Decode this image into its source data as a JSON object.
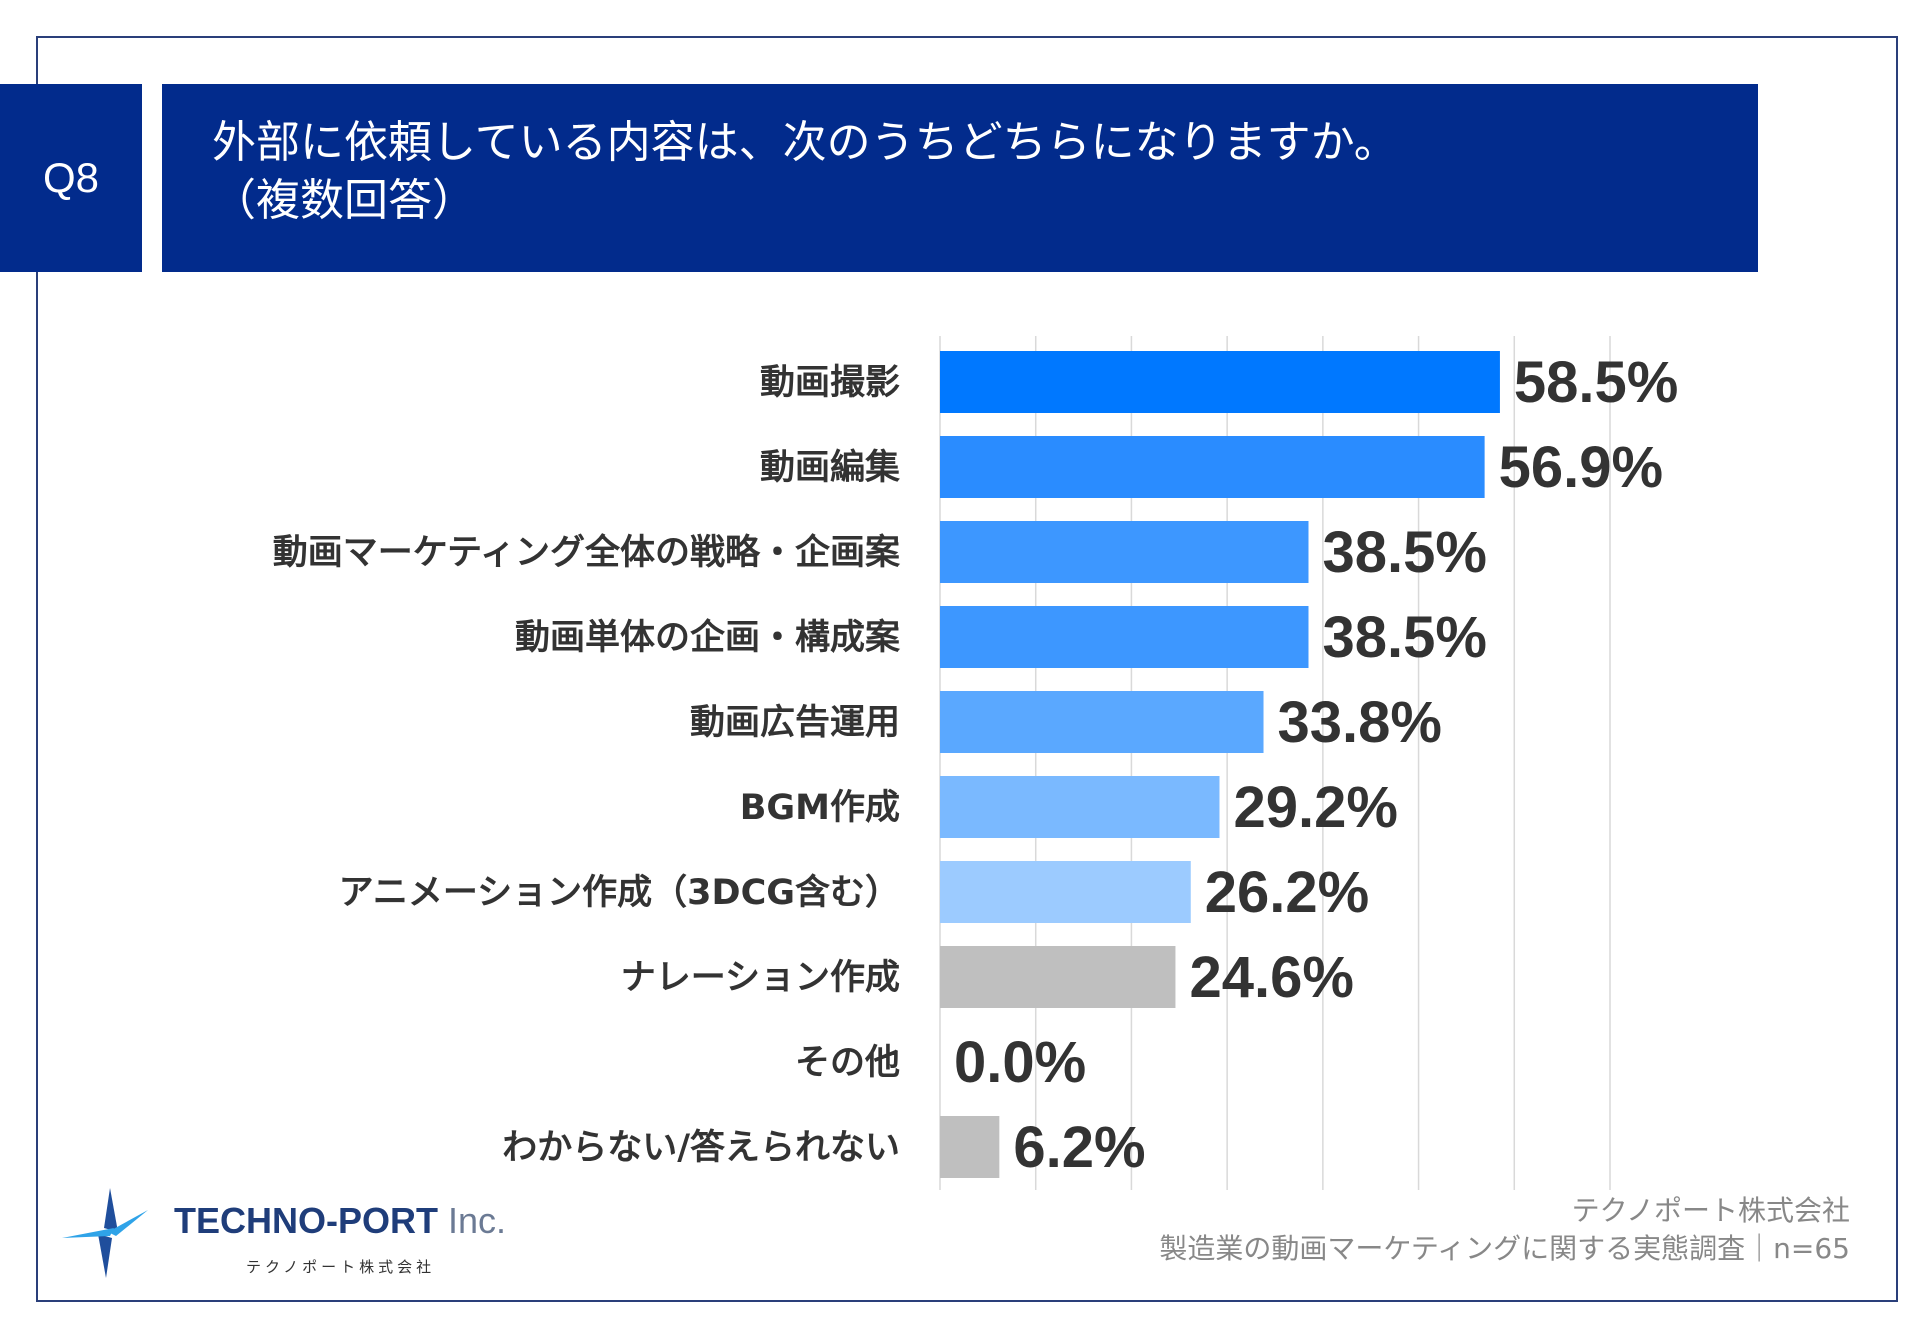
{
  "header": {
    "question_number": "Q8",
    "title_line1": "外部に依頼している内容は、次のうちどちらになりますか。",
    "title_line2": "（複数回答）"
  },
  "colors": {
    "frame": "#2a3f7a",
    "header_bg": "#022b8c",
    "gridline": "#d9d9d9",
    "gray_bar": "#bfbfbf"
  },
  "chart_data": {
    "type": "bar",
    "orientation": "horizontal",
    "title": "外部に依頼している内容は、次のうちどちらになりますか。（複数回答）",
    "categories": [
      "動画撮影",
      "動画編集",
      "動画マーケティング全体の戦略・企画案",
      "動画単体の企画・構成案",
      "動画広告運用",
      "BGM作成",
      "アニメーション作成（3DCG含む）",
      "ナレーション作成",
      "その他",
      "わからない/答えられない"
    ],
    "values": [
      58.5,
      56.9,
      38.5,
      38.5,
      33.8,
      29.2,
      26.2,
      24.6,
      0.0,
      6.2
    ],
    "value_labels": [
      "58.5%",
      "56.9%",
      "38.5%",
      "38.5%",
      "33.8%",
      "29.2%",
      "26.2%",
      "24.6%",
      "0.0%",
      "6.2%"
    ],
    "bar_colors": [
      "#0078ff",
      "#2a8cff",
      "#3d97ff",
      "#3d97ff",
      "#5aa8ff",
      "#7ab9ff",
      "#9ccbff",
      "#bfbfbf",
      "#bfbfbf",
      "#bfbfbf"
    ],
    "xlim": [
      0,
      70
    ],
    "grid": true,
    "legend": "none"
  },
  "footer": {
    "logo_name": "TECHNO-PORT",
    "logo_suffix": "Inc.",
    "logo_sub": "テクノポート株式会社",
    "source_line1": "テクノポート株式会社",
    "source_line2": "製造業の動画マーケティングに関する実態調査｜n=65"
  }
}
